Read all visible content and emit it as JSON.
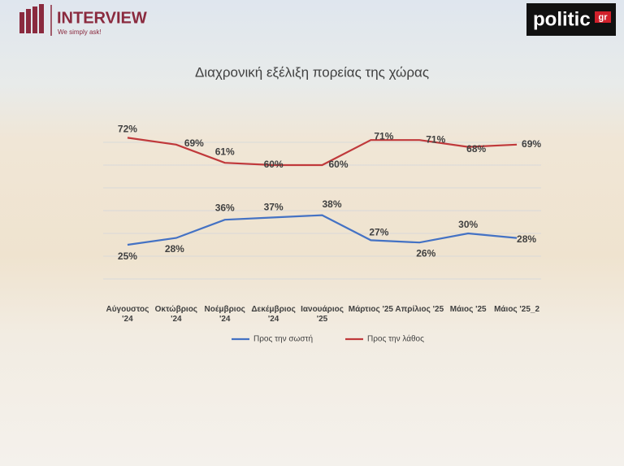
{
  "brand": "INTERVIEW",
  "tagline": "We simply ask!",
  "publisher": "politic",
  "publisher_suffix": "gr",
  "chart_data": {
    "type": "line",
    "title": "Διαχρονική εξέλιξη πορείας της χώρας",
    "categories": [
      "Αύγουστος '24",
      "Οκτώβριος '24",
      "Νοέμβριος '24",
      "Δεκέμβριος '24",
      "Ιανουάριος '25",
      "Μάρτιος '25",
      "Απρίλιος '25",
      "Μάιος '25",
      "Μάιος '25_2"
    ],
    "series": [
      {
        "name": "Προς την σωστή",
        "color": "#4472c4",
        "values": [
          25,
          28,
          36,
          37,
          38,
          27,
          26,
          30,
          28
        ],
        "value_labels": [
          "25%",
          "28%",
          "36%",
          "37%",
          "38%",
          "27%",
          "26%",
          "30%",
          "28%"
        ]
      },
      {
        "name": "Προς την λάθος",
        "color": "#c0393b",
        "values": [
          72,
          69,
          61,
          60,
          60,
          71,
          71,
          68,
          69
        ],
        "value_labels": [
          "72%",
          "69%",
          "61%",
          "60%",
          "60%",
          "71%",
          "71%",
          "68%",
          "69%"
        ]
      }
    ],
    "ylim": [
      0,
      75
    ],
    "yticks": [
      10,
      20,
      30,
      40,
      50,
      60,
      70
    ],
    "grid": true,
    "legend": "bottom"
  }
}
